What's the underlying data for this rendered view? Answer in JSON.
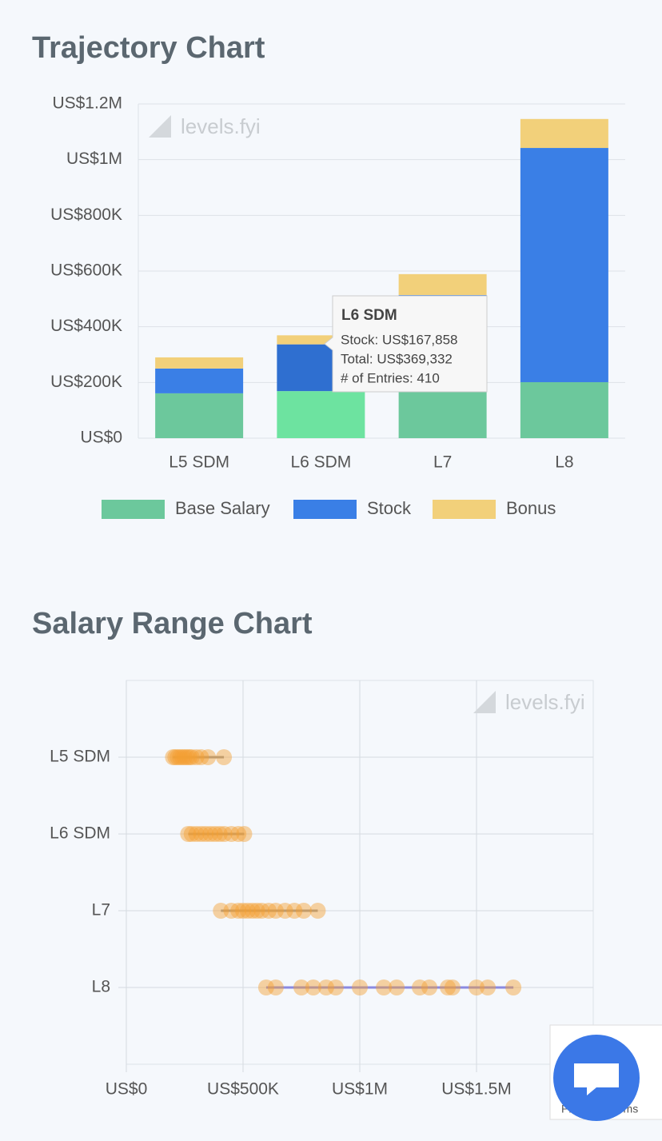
{
  "chart_data": [
    {
      "type": "stacked_bar",
      "title": "Trajectory Chart",
      "watermark": "levels.fyi",
      "categories": [
        "L5 SDM",
        "L6 SDM",
        "L7",
        "L8"
      ],
      "series": [
        {
          "name": "Base Salary",
          "color": "#6cc89c",
          "values": [
            161000,
            169000,
            185000,
            201000
          ]
        },
        {
          "name": "Stock",
          "color": "#3a7fe6",
          "values": [
            89000,
            167858,
            329000,
            841000
          ]
        },
        {
          "name": "Bonus",
          "color": "#f2d07a",
          "values": [
            40000,
            32474,
            75000,
            104000
          ]
        }
      ],
      "ylim": [
        0,
        1200000
      ],
      "yticks": [
        {
          "value": 0,
          "label": "US$0"
        },
        {
          "value": 200000,
          "label": "US$200K"
        },
        {
          "value": 400000,
          "label": "US$400K"
        },
        {
          "value": 600000,
          "label": "US$600K"
        },
        {
          "value": 800000,
          "label": "US$800K"
        },
        {
          "value": 1000000,
          "label": "US$1M"
        },
        {
          "value": 1200000,
          "label": "US$1.2M"
        }
      ],
      "grid": true,
      "legend": "bottom",
      "tooltip": {
        "title": "L6 SDM",
        "lines": [
          "Stock: US$167,858",
          "Total: US$369,332",
          "# of Entries: 410"
        ]
      }
    },
    {
      "type": "strip",
      "title": "Salary Range Chart",
      "watermark": "levels.fyi",
      "categories": [
        "L5 SDM",
        "L6 SDM",
        "L7",
        "L8"
      ],
      "color": "#f5a032",
      "points": [
        [
          200000,
          210000,
          220000,
          230000,
          240000,
          250000,
          260000,
          270000,
          280000,
          300000,
          320000,
          350000,
          418000
        ],
        [
          265000,
          280000,
          300000,
          320000,
          340000,
          360000,
          380000,
          400000,
          420000,
          450000,
          480000,
          505000
        ],
        [
          405000,
          450000,
          480000,
          500000,
          520000,
          540000,
          560000,
          580000,
          610000,
          640000,
          680000,
          720000,
          760000,
          820000
        ],
        [
          599000,
          640000,
          750000,
          801000,
          856000,
          897000,
          1000000,
          1103000,
          1158000,
          1257000,
          1298000,
          1377000,
          1397000,
          1500000,
          1548000,
          1658000
        ]
      ],
      "xlim": [
        0,
        2000000
      ],
      "xticks": [
        {
          "value": 0,
          "label": "US$0"
        },
        {
          "value": 500000,
          "label": "US$500K"
        },
        {
          "value": 1000000,
          "label": "US$1M"
        },
        {
          "value": 1500000,
          "label": "US$1.5M"
        }
      ],
      "grid": true
    }
  ],
  "recaptcha_text": "Privacy - Terms"
}
